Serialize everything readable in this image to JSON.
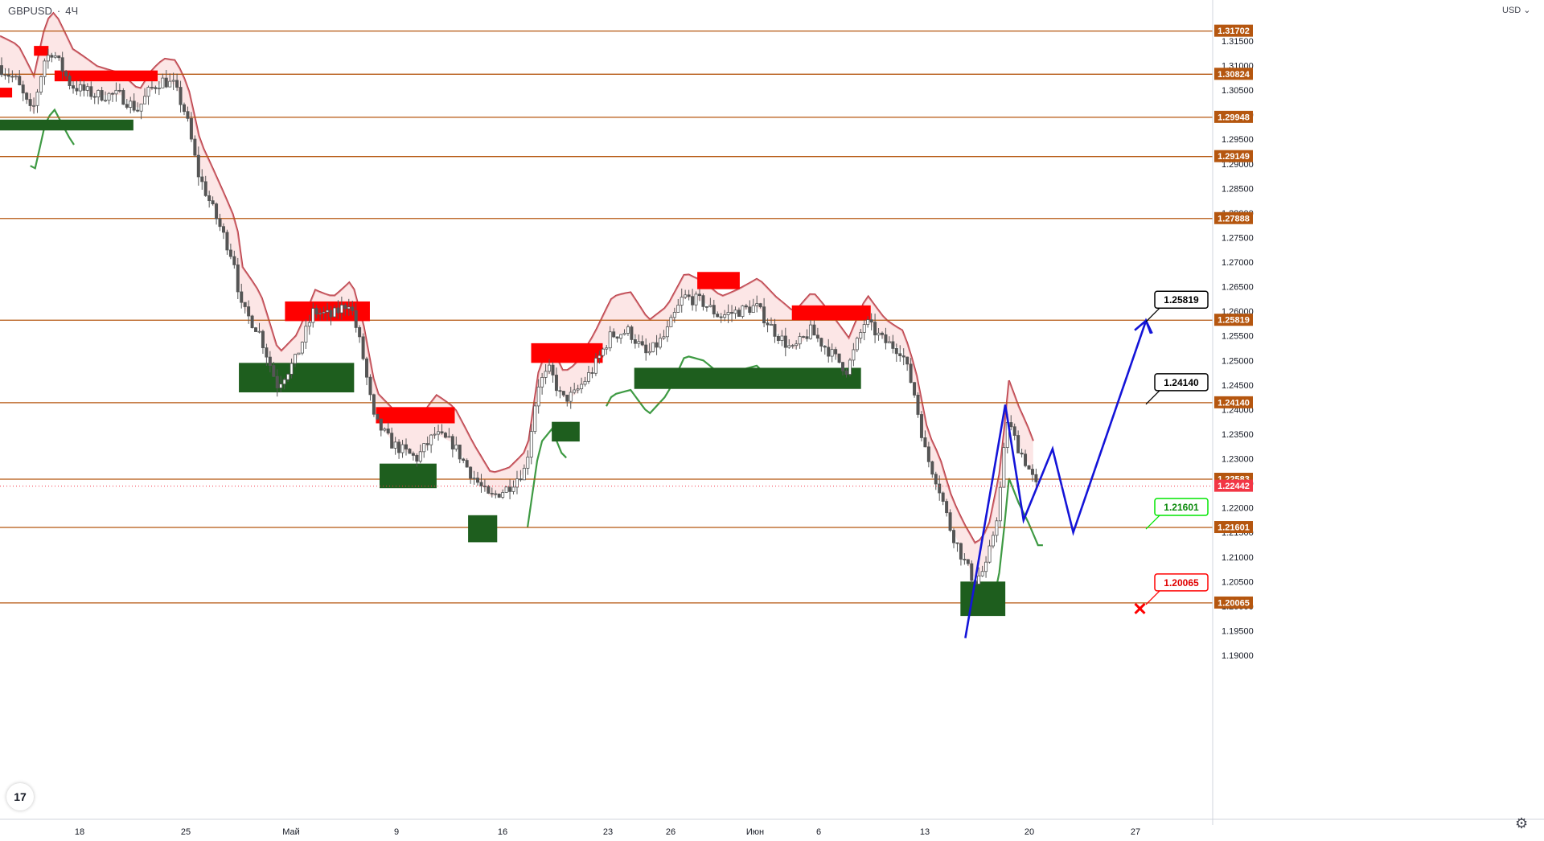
{
  "header": {
    "symbol": "GBPUSD",
    "interval": "4Ч",
    "dot": "·",
    "currency": "USD"
  },
  "logo_text": "17",
  "settings_icon": "gear-icon",
  "chart_data": {
    "type": "candlestick",
    "title": "GBPUSD · 4Ч",
    "ylim": [
      1.1875,
      1.3225
    ],
    "y_ticks": [
      "1.31500",
      "1.31000",
      "1.30500",
      "1.30000",
      "1.29500",
      "1.29000",
      "1.28500",
      "1.28000",
      "1.27500",
      "1.27000",
      "1.26500",
      "1.26000",
      "1.25500",
      "1.25000",
      "1.24500",
      "1.24000",
      "1.23500",
      "1.23000",
      "1.22500",
      "1.22000",
      "1.21500",
      "1.21000",
      "1.20500",
      "1.20000",
      "1.19500",
      "1.19000"
    ],
    "x_ticks": [
      "18",
      "25",
      "Май",
      "9",
      "16",
      "23",
      "26",
      "Июн",
      "6",
      "13",
      "20",
      "27"
    ],
    "grid": false,
    "levels": [
      {
        "value": 1.31702,
        "label": "1.31702"
      },
      {
        "value": 1.30824,
        "label": "1.30824"
      },
      {
        "value": 1.29948,
        "label": "1.29948"
      },
      {
        "value": 1.29149,
        "label": "1.29149"
      },
      {
        "value": 1.27888,
        "label": "1.27888"
      },
      {
        "value": 1.25819,
        "label": "1.25819"
      },
      {
        "value": 1.2414,
        "label": "1.24140"
      },
      {
        "value": 1.22583,
        "label": "1.22583"
      },
      {
        "value": 1.21601,
        "label": "1.21601"
      },
      {
        "value": 1.20065,
        "label": "1.20065"
      }
    ],
    "current_price": {
      "value": 1.22442,
      "label": "1.22442",
      "color": "#f23645"
    },
    "callouts": [
      {
        "label": "1.25819",
        "style": "target",
        "color": "#000000"
      },
      {
        "label": "1.24140",
        "style": "target",
        "color": "#000000"
      },
      {
        "label": "1.21601",
        "style": "entry",
        "color": "#00e600"
      },
      {
        "label": "1.20065",
        "style": "stop",
        "color": "#ff0000"
      }
    ],
    "colors": {
      "level_line": "#b5560f",
      "level_tag": "#b5560f",
      "resistance_zone": "#ff0000",
      "support_zone": "#1e5e1e",
      "trail_down": "#b22833",
      "trail_up": "#3e9a43",
      "projection": "#1414d8",
      "candle_up": "#26a69a",
      "candle_down": "#ef5350"
    },
    "price_path": [
      [
        0.0,
        1.31
      ],
      [
        0.015,
        1.307
      ],
      [
        0.028,
        1.3
      ],
      [
        0.038,
        1.311
      ],
      [
        0.045,
        1.313
      ],
      [
        0.06,
        1.306
      ],
      [
        0.08,
        1.304
      ],
      [
        0.1,
        1.304
      ],
      [
        0.115,
        1.301
      ],
      [
        0.125,
        1.305
      ],
      [
        0.135,
        1.307
      ],
      [
        0.145,
        1.306
      ],
      [
        0.155,
        1.3
      ],
      [
        0.165,
        1.288
      ],
      [
        0.175,
        1.282
      ],
      [
        0.185,
        1.276
      ],
      [
        0.195,
        1.27
      ],
      [
        0.2,
        1.261
      ],
      [
        0.215,
        1.256
      ],
      [
        0.23,
        1.245
      ],
      [
        0.245,
        1.25
      ],
      [
        0.26,
        1.26
      ],
      [
        0.275,
        1.259
      ],
      [
        0.29,
        1.262
      ],
      [
        0.3,
        1.252
      ],
      [
        0.31,
        1.238
      ],
      [
        0.325,
        1.233
      ],
      [
        0.345,
        1.23
      ],
      [
        0.36,
        1.235
      ],
      [
        0.375,
        1.233
      ],
      [
        0.39,
        1.227
      ],
      [
        0.405,
        1.222
      ],
      [
        0.42,
        1.224
      ],
      [
        0.435,
        1.228
      ],
      [
        0.445,
        1.245
      ],
      [
        0.455,
        1.248
      ],
      [
        0.465,
        1.242
      ],
      [
        0.475,
        1.243
      ],
      [
        0.49,
        1.248
      ],
      [
        0.505,
        1.255
      ],
      [
        0.52,
        1.256
      ],
      [
        0.535,
        1.251
      ],
      [
        0.55,
        1.255
      ],
      [
        0.565,
        1.263
      ],
      [
        0.58,
        1.262
      ],
      [
        0.595,
        1.259
      ],
      [
        0.61,
        1.26
      ],
      [
        0.625,
        1.261
      ],
      [
        0.64,
        1.256
      ],
      [
        0.655,
        1.252
      ],
      [
        0.67,
        1.256
      ],
      [
        0.685,
        1.252
      ],
      [
        0.7,
        1.248
      ],
      [
        0.715,
        1.258
      ],
      [
        0.73,
        1.254
      ],
      [
        0.745,
        1.252
      ],
      [
        0.755,
        1.244
      ],
      [
        0.765,
        1.231
      ],
      [
        0.775,
        1.225
      ],
      [
        0.785,
        1.216
      ],
      [
        0.795,
        1.21
      ],
      [
        0.805,
        1.205
      ],
      [
        0.815,
        1.208
      ],
      [
        0.825,
        1.22
      ],
      [
        0.832,
        1.238
      ],
      [
        0.84,
        1.233
      ],
      [
        0.848,
        1.229
      ],
      [
        0.856,
        1.2244
      ]
    ],
    "projection_path": [
      [
        0.796,
        1.1935
      ],
      [
        0.829,
        1.241
      ],
      [
        0.844,
        1.2175
      ],
      [
        0.868,
        1.232
      ],
      [
        0.885,
        1.215
      ],
      [
        0.945,
        1.2581
      ],
      [
        0.95,
        1.2555
      ]
    ],
    "projection_marker": {
      "shape": "x",
      "color": "#ff0000",
      "value": 1.1995
    }
  }
}
